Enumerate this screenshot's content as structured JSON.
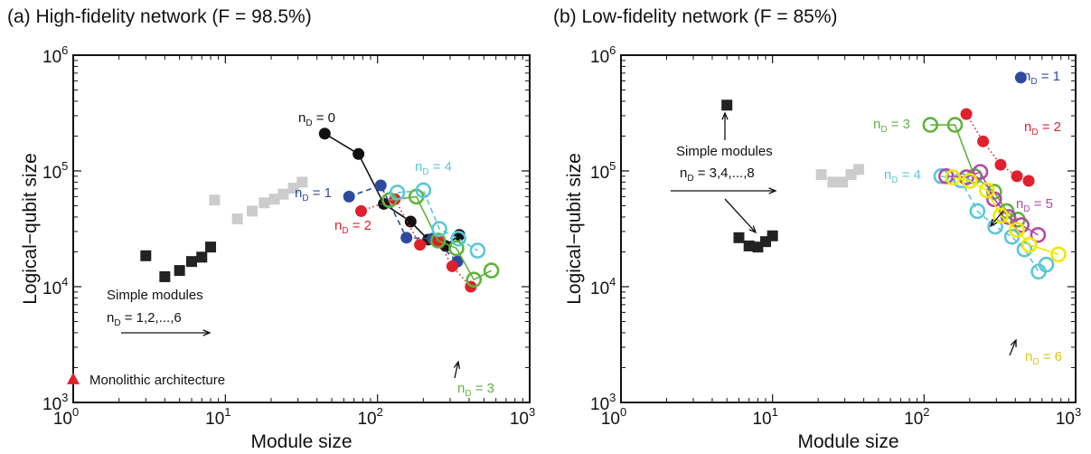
{
  "chart_data": [
    {
      "type": "scatter",
      "title": "(a) High-fidelity network (F = 98.5%)",
      "xlabel": "Module size",
      "ylabel": "Logical−qubit size",
      "xscale": "log",
      "yscale": "log",
      "xlim": [
        1,
        1000
      ],
      "ylim": [
        1000,
        1000000
      ],
      "x_ticks": [
        {
          "base": "10",
          "exp": "0"
        },
        {
          "base": "10",
          "exp": "1"
        },
        {
          "base": "10",
          "exp": "2"
        },
        {
          "base": "10",
          "exp": "3"
        }
      ],
      "y_ticks": [
        {
          "base": "10",
          "exp": "3"
        },
        {
          "base": "10",
          "exp": "4"
        },
        {
          "base": "10",
          "exp": "5"
        },
        {
          "base": "10",
          "exp": "6"
        }
      ],
      "grid": false,
      "series": [
        {
          "name": "Simple modules",
          "color": "#222222",
          "marker": "square",
          "points": [
            [
              3,
              18500
            ],
            [
              4,
              12200
            ],
            [
              5,
              13800
            ],
            [
              6,
              16500
            ],
            [
              7,
              18000
            ],
            [
              8,
              22000
            ]
          ]
        },
        {
          "name": "",
          "color": "#cccccc",
          "marker": "square",
          "points": [
            [
              8.5,
              56000
            ],
            [
              12,
              38500
            ],
            [
              15,
              45000
            ],
            [
              18,
              53000
            ],
            [
              21,
              57000
            ],
            [
              24,
              63000
            ],
            [
              28,
              71000
            ],
            [
              32,
              80000
            ]
          ]
        },
        {
          "name": "n_D = 0",
          "color": "#111111",
          "marker": "dot",
          "line": "solid",
          "points": [
            [
              45,
              210000
            ],
            [
              75,
              140000
            ],
            [
              110,
              52000
            ],
            [
              165,
              36500
            ],
            [
              215,
              25500
            ],
            [
              280,
              22500
            ],
            [
              345,
              28000
            ]
          ]
        },
        {
          "name": "n_D = 1",
          "color": "#2e4a9e",
          "marker": "dot",
          "line": "dashed",
          "points": [
            [
              65,
              60000
            ],
            [
              105,
              75000
            ],
            [
              155,
              26500
            ],
            [
              230,
              26000
            ],
            [
              335,
              16500
            ]
          ]
        },
        {
          "name": "n_D = 2",
          "color": "#e0202c",
          "marker": "dot",
          "line": "dotted",
          "points": [
            [
              78,
              45000
            ],
            [
              130,
              57000
            ],
            [
              190,
              23000
            ],
            [
              250,
              25000
            ],
            [
              310,
              15000
            ],
            [
              410,
              10000
            ]
          ]
        },
        {
          "name": "n_D = 3",
          "color": "#5fb33a",
          "marker": "ring",
          "line": "solid",
          "points": [
            [
              120,
              56000
            ],
            [
              180,
              60000
            ],
            [
              250,
              25000
            ],
            [
              330,
              21500
            ],
            [
              430,
              11500
            ],
            [
              560,
              13800
            ]
          ]
        },
        {
          "name": "n_D = 4",
          "color": "#5cc6d6",
          "marker": "ring",
          "line": "dashed",
          "points": [
            [
              135,
              65000
            ],
            [
              200,
              68000
            ],
            [
              255,
              31500
            ],
            [
              340,
              26000
            ],
            [
              455,
              20500
            ]
          ]
        }
      ],
      "annotations": [
        {
          "text": "n_D = 0",
          "color": "#111111"
        },
        {
          "text": "n_D = 1",
          "color": "#2e4a9e"
        },
        {
          "text": "n_D = 2",
          "color": "#e0202c"
        },
        {
          "text": "n_D = 3",
          "color": "#5fb33a"
        },
        {
          "text": "n_D = 4",
          "color": "#5cc6d6"
        },
        {
          "text": "Simple modules",
          "color": "#111111"
        },
        {
          "text": "n_D = 1,2,...,6",
          "color": "#111111"
        },
        {
          "text": "Monolithic architecture",
          "color": "#111111"
        }
      ],
      "monolithic": {
        "label": "Monolithic architecture",
        "x": 1,
        "y": 1600,
        "color": "#e0202c",
        "marker": "triangle"
      }
    },
    {
      "type": "scatter",
      "title": "(b) Low-fidelity network (F = 85%)",
      "xlabel": "Module size",
      "ylabel": "Logical−qubit size",
      "xscale": "log",
      "yscale": "log",
      "xlim": [
        1,
        1000
      ],
      "ylim": [
        1000,
        1000000
      ],
      "x_ticks": [
        {
          "base": "10",
          "exp": "0"
        },
        {
          "base": "10",
          "exp": "1"
        },
        {
          "base": "10",
          "exp": "2"
        },
        {
          "base": "10",
          "exp": "3"
        }
      ],
      "y_ticks": [
        {
          "base": "10",
          "exp": "3"
        },
        {
          "base": "10",
          "exp": "4"
        },
        {
          "base": "10",
          "exp": "5"
        },
        {
          "base": "10",
          "exp": "6"
        }
      ],
      "grid": false,
      "series": [
        {
          "name": "Simple modules",
          "color": "#222222",
          "marker": "square",
          "points": [
            [
              5,
              370000
            ],
            [
              6,
              26500
            ],
            [
              7,
              22500
            ],
            [
              8,
              22000
            ],
            [
              9,
              24500
            ],
            [
              10,
              27500
            ]
          ]
        },
        {
          "name": "",
          "color": "#cccccc",
          "marker": "square",
          "points": [
            [
              21,
              93000
            ],
            [
              25,
              80000
            ],
            [
              29,
              80000
            ],
            [
              33,
              93000
            ],
            [
              37,
              103000
            ]
          ]
        },
        {
          "name": "n_D = 1",
          "color": "#2e4a9e",
          "marker": "dot",
          "line": "none",
          "points": [
            [
              435,
              640000
            ]
          ]
        },
        {
          "name": "n_D = 2",
          "color": "#e0202c",
          "marker": "dot",
          "line": "dotted",
          "points": [
            [
              190,
              310000
            ],
            [
              245,
              180000
            ],
            [
              320,
              113000
            ],
            [
              410,
              90000
            ],
            [
              490,
              82000
            ]
          ]
        },
        {
          "name": "n_D = 3",
          "color": "#5fb33a",
          "marker": "ring",
          "line": "solid",
          "points": [
            [
              110,
              250000
            ],
            [
              160,
              250000
            ],
            [
              215,
              90000
            ],
            [
              290,
              66000
            ],
            [
              350,
              45000
            ],
            [
              415,
              38000
            ]
          ]
        },
        {
          "name": "n_D = 4",
          "color": "#5cc6d6",
          "marker": "ring",
          "line": "dashed",
          "points": [
            [
              130,
              90000
            ],
            [
              175,
              83000
            ],
            [
              225,
              45000
            ],
            [
              295,
              33000
            ],
            [
              380,
              27000
            ],
            [
              460,
              21000
            ],
            [
              570,
              13500
            ],
            [
              640,
              15500
            ]
          ]
        },
        {
          "name": "n_D = 5",
          "color": "#b04aa6",
          "marker": "ring",
          "line": "solid",
          "points": [
            [
              140,
              90000
            ],
            [
              190,
              88000
            ],
            [
              235,
              98000
            ],
            [
              290,
              57000
            ],
            [
              360,
              40000
            ],
            [
              440,
              34000
            ],
            [
              565,
              28000
            ]
          ]
        },
        {
          "name": "n_D = 6",
          "color": "#f2e600",
          "marker": "ring",
          "line": "solid",
          "points": [
            [
              155,
              88000
            ],
            [
              200,
              82000
            ],
            [
              260,
              68000
            ],
            [
              320,
              41000
            ],
            [
              410,
              31000
            ],
            [
              495,
              23000
            ],
            [
              770,
              19000
            ]
          ]
        }
      ],
      "annotations": [
        {
          "text": "n_D = 1",
          "color": "#2e4a9e"
        },
        {
          "text": "n_D = 2",
          "color": "#e0202c"
        },
        {
          "text": "n_D = 3",
          "color": "#5fb33a"
        },
        {
          "text": "n_D = 4",
          "color": "#5cc6d6"
        },
        {
          "text": "n_D = 5",
          "color": "#b04aa6"
        },
        {
          "text": "n_D = 6",
          "color": "#d6c800"
        },
        {
          "text": "Simple modules",
          "color": "#111111"
        },
        {
          "text": "n_D = 3,4,...,8",
          "color": "#111111"
        }
      ]
    }
  ]
}
